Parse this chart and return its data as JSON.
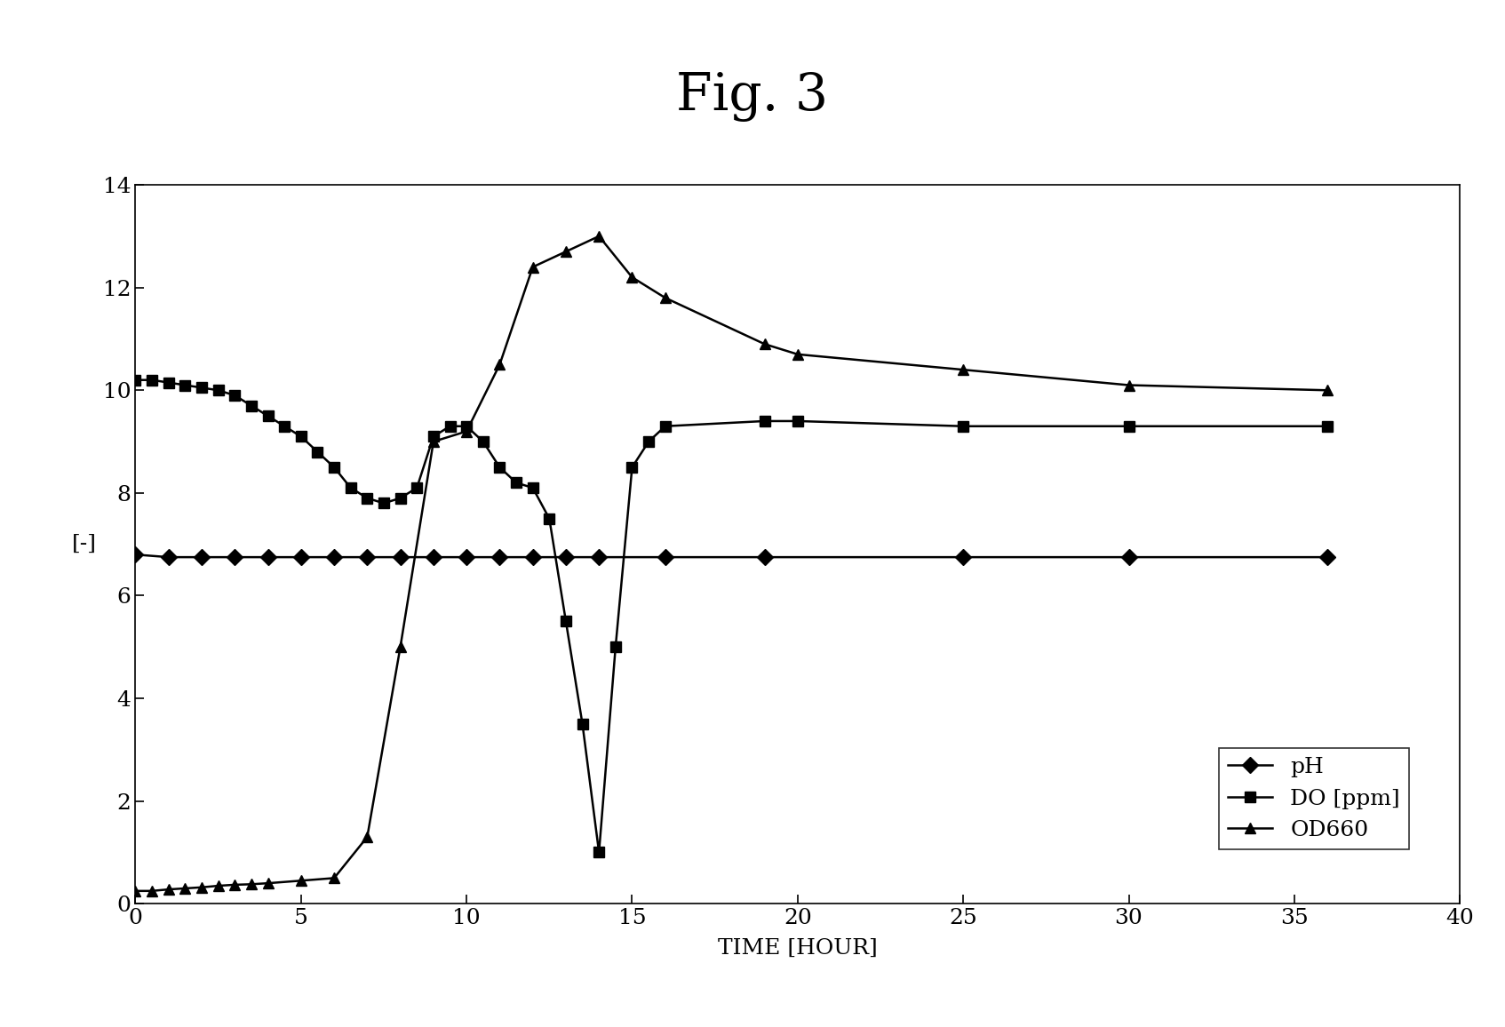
{
  "title": "Fig. 3",
  "xlabel": "TIME [HOUR]",
  "ylabel": "[-]",
  "xlim": [
    0,
    40
  ],
  "ylim": [
    0,
    14
  ],
  "xticks": [
    0,
    5,
    10,
    15,
    20,
    25,
    30,
    35,
    40
  ],
  "yticks": [
    0,
    2,
    4,
    6,
    8,
    10,
    12,
    14
  ],
  "background_color": "#ffffff",
  "line_color": "#000000",
  "pH_x": [
    0,
    1,
    2,
    3,
    4,
    5,
    6,
    7,
    8,
    9,
    10,
    11,
    12,
    13,
    14,
    16,
    19,
    25,
    30,
    36
  ],
  "pH_y": [
    6.8,
    6.75,
    6.75,
    6.75,
    6.75,
    6.75,
    6.75,
    6.75,
    6.75,
    6.75,
    6.75,
    6.75,
    6.75,
    6.75,
    6.75,
    6.75,
    6.75,
    6.75,
    6.75,
    6.75
  ],
  "DO_x": [
    0,
    0.5,
    1,
    1.5,
    2,
    2.5,
    3,
    3.5,
    4,
    4.5,
    5,
    5.5,
    6,
    6.5,
    7,
    7.5,
    8,
    8.5,
    9,
    9.5,
    10,
    10.5,
    11,
    11.5,
    12,
    12.5,
    13,
    13.5,
    14,
    14.5,
    15,
    15.5,
    16,
    19,
    20,
    25,
    30,
    36
  ],
  "DO_y": [
    10.2,
    10.2,
    10.15,
    10.1,
    10.05,
    10.0,
    9.9,
    9.7,
    9.5,
    9.3,
    9.1,
    8.8,
    8.5,
    8.1,
    7.9,
    7.8,
    7.9,
    8.1,
    9.1,
    9.3,
    9.3,
    9.0,
    8.5,
    8.2,
    8.1,
    7.5,
    5.5,
    3.5,
    1.0,
    5.0,
    8.5,
    9.0,
    9.3,
    9.4,
    9.4,
    9.3,
    9.3,
    9.3
  ],
  "OD_x": [
    0,
    0.5,
    1,
    1.5,
    2,
    2.5,
    3,
    3.5,
    4,
    5,
    6,
    7,
    8,
    9,
    10,
    11,
    12,
    13,
    14,
    15,
    16,
    19,
    20,
    25,
    30,
    36
  ],
  "OD_y": [
    0.25,
    0.25,
    0.28,
    0.3,
    0.32,
    0.35,
    0.37,
    0.38,
    0.4,
    0.45,
    0.5,
    1.3,
    5.0,
    9.0,
    9.2,
    10.5,
    12.4,
    12.7,
    13.0,
    12.2,
    11.8,
    10.9,
    10.7,
    10.4,
    10.1,
    10.0
  ],
  "legend_labels": [
    "pH",
    "DO [ppm]",
    "OD660"
  ],
  "pH_marker": "D",
  "DO_marker": "s",
  "OD_marker": "^",
  "pH_markersize": 9,
  "DO_markersize": 8,
  "OD_markersize": 9,
  "linewidth": 1.8,
  "title_fontsize": 42,
  "axis_label_fontsize": 18,
  "tick_fontsize": 18,
  "legend_fontsize": 18
}
